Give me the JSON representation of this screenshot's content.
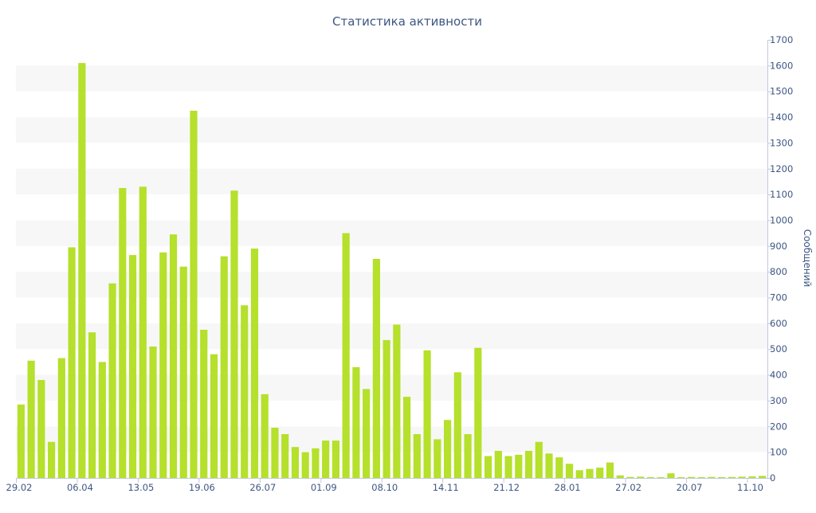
{
  "chart_data": {
    "type": "bar",
    "title": "Статистика активности",
    "xlabel": "",
    "ylabel": "Сообщений",
    "ylim": [
      0,
      1700
    ],
    "y_ticks": [
      0,
      100,
      200,
      300,
      400,
      500,
      600,
      700,
      800,
      900,
      1000,
      1100,
      1200,
      1300,
      1400,
      1500,
      1600,
      1700
    ],
    "y_axis_side": "right",
    "grid": "alternating horizontal bands",
    "legend": "none",
    "bar_color": "#b5e02c",
    "band_color": "#f7f7f7",
    "text_color": "#3e5683",
    "x_tick_labels": [
      {
        "index": 0,
        "label": "29.02"
      },
      {
        "index": 6,
        "label": "06.04"
      },
      {
        "index": 12,
        "label": "13.05"
      },
      {
        "index": 18,
        "label": "19.06"
      },
      {
        "index": 24,
        "label": "26.07"
      },
      {
        "index": 30,
        "label": "01.09"
      },
      {
        "index": 36,
        "label": "08.10"
      },
      {
        "index": 42,
        "label": "14.11"
      },
      {
        "index": 48,
        "label": "21.12"
      },
      {
        "index": 54,
        "label": "28.01"
      },
      {
        "index": 60,
        "label": "27.02"
      },
      {
        "index": 66,
        "label": "20.07"
      },
      {
        "index": 72,
        "label": "11.10"
      }
    ],
    "values": [
      285,
      455,
      380,
      140,
      465,
      895,
      1610,
      565,
      450,
      755,
      1125,
      865,
      1130,
      510,
      875,
      945,
      820,
      1425,
      575,
      480,
      860,
      1115,
      670,
      890,
      325,
      195,
      170,
      120,
      100,
      115,
      145,
      145,
      950,
      430,
      345,
      850,
      535,
      595,
      315,
      170,
      495,
      150,
      225,
      410,
      170,
      505,
      85,
      105,
      85,
      90,
      105,
      140,
      95,
      80,
      55,
      30,
      35,
      40,
      60,
      10,
      4,
      5,
      3,
      3,
      18,
      3,
      4,
      3,
      4,
      3,
      4,
      5,
      6,
      8
    ]
  }
}
